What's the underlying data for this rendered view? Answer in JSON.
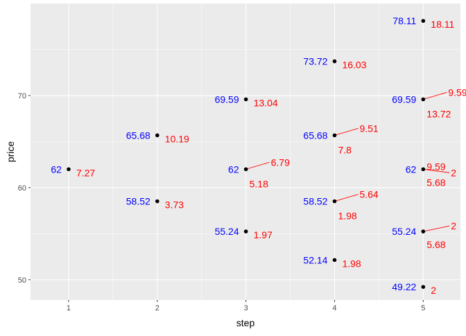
{
  "chart_data": {
    "type": "scatter",
    "xlabel": "step",
    "ylabel": "price",
    "xlim": [
      0.57,
      5.42
    ],
    "ylim": [
      47.8,
      80.0
    ],
    "xticks": [
      1,
      2,
      3,
      4,
      5
    ],
    "yticks": [
      50,
      60,
      70
    ],
    "grid": true,
    "colors": {
      "panel": "#ebebeb",
      "grid": "#ffffff",
      "point": "#000000",
      "price_label": "#0000ff",
      "option_label": "#ff0000"
    },
    "points": [
      {
        "x": 1,
        "y": 62,
        "price_label": "62",
        "option_labels": [
          "7.27"
        ]
      },
      {
        "x": 2,
        "y": 65.68,
        "price_label": "65.68",
        "option_labels": [
          "10.19"
        ]
      },
      {
        "x": 2,
        "y": 58.52,
        "price_label": "58.52",
        "option_labels": [
          "3.73"
        ]
      },
      {
        "x": 3,
        "y": 69.59,
        "price_label": "69.59",
        "option_labels": [
          "13.04"
        ]
      },
      {
        "x": 3,
        "y": 62,
        "price_label": "62",
        "option_labels": [
          "6.79",
          "5.18"
        ]
      },
      {
        "x": 3,
        "y": 55.24,
        "price_label": "55.24",
        "option_labels": [
          "1.97"
        ]
      },
      {
        "x": 4,
        "y": 73.72,
        "price_label": "73.72",
        "option_labels": [
          "16.03"
        ]
      },
      {
        "x": 4,
        "y": 65.68,
        "price_label": "65.68",
        "option_labels": [
          "9.51",
          "7.8"
        ]
      },
      {
        "x": 4,
        "y": 58.52,
        "price_label": "58.52",
        "option_labels": [
          "5.64",
          "1.98"
        ]
      },
      {
        "x": 4,
        "y": 52.14,
        "price_label": "52.14",
        "option_labels": [
          "1.98"
        ]
      },
      {
        "x": 5,
        "y": 78.11,
        "price_label": "78.11",
        "option_labels": [
          "18.11"
        ]
      },
      {
        "x": 5,
        "y": 69.59,
        "price_label": "69.59",
        "option_labels": [
          "9.59",
          "13.72"
        ]
      },
      {
        "x": 5,
        "y": 62,
        "price_label": "62",
        "option_labels": [
          "9.59",
          "2",
          "5.68"
        ]
      },
      {
        "x": 5,
        "y": 55.24,
        "price_label": "55.24",
        "option_labels": [
          "2",
          "5.68"
        ]
      },
      {
        "x": 5,
        "y": 49.22,
        "price_label": "49.22",
        "option_labels": [
          "2"
        ]
      }
    ]
  }
}
